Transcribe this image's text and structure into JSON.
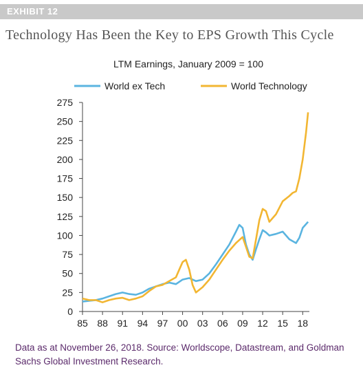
{
  "exhibit_label": "EXHIBIT 12",
  "page_title": "Technology Has Been the Key to EPS Growth This Cycle",
  "footer_note": "Data as at November 26, 2018. Source: Worldscope, Datastream, and Goldman Sachs Global Investment Research.",
  "colors": {
    "world_ex_tech": "#5ab4e0",
    "world_technology": "#f2b632",
    "footer_text": "#5b2a6b",
    "exhibit_bar": "#c9c9c9"
  },
  "chart_data": {
    "type": "line",
    "title": "LTM Earnings, January 2009 = 100",
    "xlabel": "",
    "ylabel": "",
    "xlim": [
      1985,
      2019
    ],
    "ylim": [
      0,
      275
    ],
    "x_ticks": [
      1985,
      1988,
      1991,
      1994,
      1997,
      2000,
      2003,
      2006,
      2009,
      2012,
      2015,
      2018
    ],
    "x_tick_labels": [
      "85",
      "88",
      "91",
      "94",
      "97",
      "00",
      "03",
      "06",
      "09",
      "12",
      "15",
      "18"
    ],
    "y_ticks": [
      0,
      25,
      50,
      75,
      100,
      125,
      150,
      175,
      200,
      225,
      250,
      275
    ],
    "y_tick_labels": [
      "0",
      "25",
      "50",
      "75",
      "100",
      "125",
      "150",
      "175",
      "200",
      "225",
      "250",
      "275"
    ],
    "grid": false,
    "legend_position": "top",
    "series": [
      {
        "name": "World ex Tech",
        "color": "#5ab4e0",
        "points": [
          [
            1985.0,
            13
          ],
          [
            1986.0,
            14
          ],
          [
            1987.0,
            15
          ],
          [
            1988.0,
            17
          ],
          [
            1989.0,
            20
          ],
          [
            1990.0,
            23
          ],
          [
            1991.0,
            25
          ],
          [
            1991.5,
            24
          ],
          [
            1992.0,
            23
          ],
          [
            1993.0,
            22
          ],
          [
            1994.0,
            25
          ],
          [
            1995.0,
            30
          ],
          [
            1996.0,
            33
          ],
          [
            1997.0,
            36
          ],
          [
            1998.0,
            38
          ],
          [
            1999.0,
            36
          ],
          [
            2000.0,
            42
          ],
          [
            2001.0,
            44
          ],
          [
            2002.0,
            40
          ],
          [
            2003.0,
            42
          ],
          [
            2004.0,
            50
          ],
          [
            2005.0,
            62
          ],
          [
            2006.0,
            75
          ],
          [
            2007.0,
            88
          ],
          [
            2008.0,
            105
          ],
          [
            2008.5,
            114
          ],
          [
            2009.0,
            110
          ],
          [
            2009.5,
            88
          ],
          [
            2010.0,
            75
          ],
          [
            2010.5,
            68
          ],
          [
            2011.0,
            82
          ],
          [
            2011.5,
            95
          ],
          [
            2012.0,
            107
          ],
          [
            2012.5,
            104
          ],
          [
            2013.0,
            100
          ],
          [
            2014.0,
            102
          ],
          [
            2015.0,
            105
          ],
          [
            2016.0,
            95
          ],
          [
            2017.0,
            90
          ],
          [
            2017.5,
            97
          ],
          [
            2018.0,
            110
          ],
          [
            2018.8,
            118
          ]
        ]
      },
      {
        "name": "World Technology",
        "color": "#f2b632",
        "points": [
          [
            1985.0,
            17
          ],
          [
            1986.0,
            15
          ],
          [
            1987.0,
            15
          ],
          [
            1988.0,
            12
          ],
          [
            1989.0,
            15
          ],
          [
            1990.0,
            17
          ],
          [
            1991.0,
            18
          ],
          [
            1992.0,
            15
          ],
          [
            1993.0,
            17
          ],
          [
            1994.0,
            20
          ],
          [
            1995.0,
            27
          ],
          [
            1996.0,
            33
          ],
          [
            1997.0,
            35
          ],
          [
            1998.0,
            40
          ],
          [
            1999.0,
            45
          ],
          [
            1999.5,
            55
          ],
          [
            2000.0,
            65
          ],
          [
            2000.5,
            68
          ],
          [
            2001.0,
            55
          ],
          [
            2001.5,
            35
          ],
          [
            2002.0,
            25
          ],
          [
            2003.0,
            32
          ],
          [
            2004.0,
            42
          ],
          [
            2005.0,
            55
          ],
          [
            2006.0,
            68
          ],
          [
            2007.0,
            80
          ],
          [
            2008.0,
            90
          ],
          [
            2009.0,
            98
          ],
          [
            2009.5,
            85
          ],
          [
            2010.0,
            72
          ],
          [
            2010.5,
            70
          ],
          [
            2011.0,
            95
          ],
          [
            2011.5,
            120
          ],
          [
            2012.0,
            135
          ],
          [
            2012.5,
            132
          ],
          [
            2013.0,
            118
          ],
          [
            2014.0,
            128
          ],
          [
            2015.0,
            145
          ],
          [
            2016.0,
            152
          ],
          [
            2016.5,
            156
          ],
          [
            2017.0,
            158
          ],
          [
            2017.5,
            175
          ],
          [
            2018.0,
            200
          ],
          [
            2018.5,
            235
          ],
          [
            2018.8,
            262
          ]
        ]
      }
    ]
  }
}
